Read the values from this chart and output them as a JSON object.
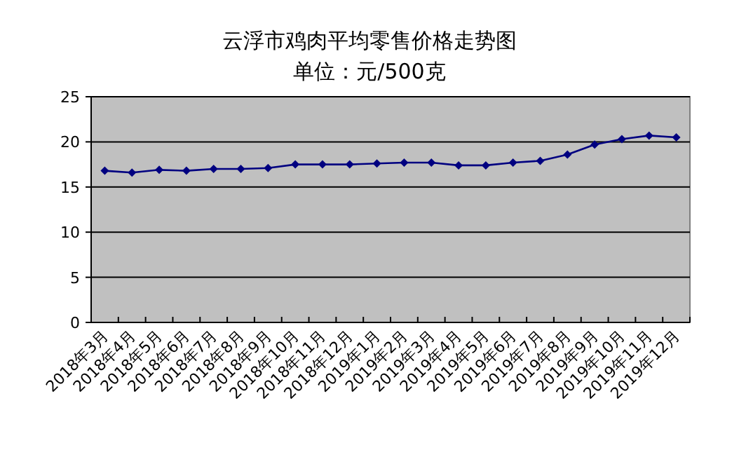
{
  "chart_data": {
    "type": "line",
    "title": "云浮市鸡肉平均零售价格走势图",
    "subtitle": "单位：元/500克",
    "categories": [
      "2018年3月",
      "2018年4月",
      "2018年5月",
      "2018年6月",
      "2018年7月",
      "2018年8月",
      "2018年9月",
      "2018年10月",
      "2018年11月",
      "2018年12月",
      "2019年1月",
      "2019年2月",
      "2019年3月",
      "2019年4月",
      "2019年5月",
      "2019年6月",
      "2019年7月",
      "2019年8月",
      "2019年9月",
      "2019年10月",
      "2019年11月",
      "2019年12月"
    ],
    "series": [
      {
        "color": "#000080",
        "values": [
          16.8,
          16.6,
          16.9,
          16.8,
          17.0,
          17.0,
          17.1,
          17.5,
          17.5,
          17.5,
          17.6,
          17.7,
          17.7,
          17.4,
          17.4,
          17.7,
          17.9,
          18.6,
          19.7,
          20.3,
          20.7,
          20.5
        ]
      }
    ],
    "ylim": [
      0,
      25
    ],
    "yticks": [
      0,
      5,
      10,
      15,
      20,
      25
    ],
    "grid": "y",
    "marker": "diamond",
    "line_style": "solid"
  }
}
